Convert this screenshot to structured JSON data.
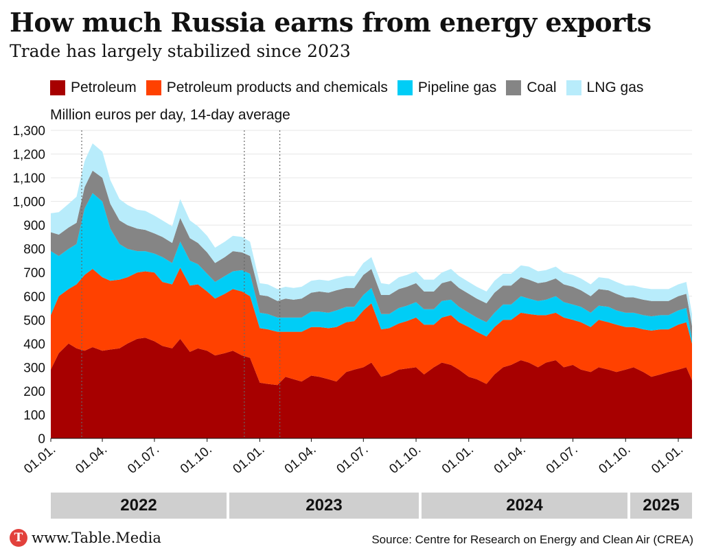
{
  "title": "How much Russia earns from energy exports",
  "subtitle": "Trade has largely stabilized since 2023",
  "legend": [
    {
      "label": "Petroleum",
      "color": "#a70000"
    },
    {
      "label": "Petroleum products and chemicals",
      "color": "#ff4100"
    },
    {
      "label": "Pipeline gas",
      "color": "#00cdf6"
    },
    {
      "label": "Coal",
      "color": "#858585"
    },
    {
      "label": "LNG gas",
      "color": "#b8ecfb"
    }
  ],
  "unit_label": "Million euros per day, 14-day average",
  "years": [
    "2022",
    "2023",
    "2024",
    "2025"
  ],
  "footer": {
    "logo_letter": "T",
    "site": "www.Table.Media"
  },
  "source": "Source: Centre for Research on Energy and Clean Air (CREA)",
  "chart_data": {
    "type": "area",
    "stacked": true,
    "ylim": [
      0,
      1300
    ],
    "y_ticks": [
      "0",
      "100",
      "200",
      "300",
      "400",
      "500",
      "600",
      "700",
      "800",
      "900",
      "1,000",
      "1,100",
      "1,200",
      "1,300"
    ],
    "x_tick_labels": [
      "01.01.",
      "01.04.",
      "01.07.",
      "01.10.",
      "01.01.",
      "01.04.",
      "01.07.",
      "01.10.",
      "01.01.",
      "01.04.",
      "01.07.",
      "01.10.",
      "01.01."
    ],
    "x_tick_dates": [
      "2022-01-01",
      "2022-04-01",
      "2022-07-01",
      "2022-10-01",
      "2023-01-01",
      "2023-04-01",
      "2023-07-01",
      "2023-10-01",
      "2024-01-01",
      "2024-04-01",
      "2024-07-01",
      "2024-10-01",
      "2025-01-01"
    ],
    "x_range": [
      "2022-01-01",
      "2025-01-25"
    ],
    "reference_lines": [
      "2022-02-24",
      "2022-12-05",
      "2023-02-05"
    ],
    "x": [
      "2022-01-01",
      "2022-01-15",
      "2022-02-01",
      "2022-02-15",
      "2022-03-01",
      "2022-03-15",
      "2022-04-01",
      "2022-04-15",
      "2022-05-01",
      "2022-05-15",
      "2022-06-01",
      "2022-06-15",
      "2022-07-01",
      "2022-07-15",
      "2022-08-01",
      "2022-08-15",
      "2022-09-01",
      "2022-09-15",
      "2022-10-01",
      "2022-10-15",
      "2022-11-01",
      "2022-11-15",
      "2022-12-01",
      "2022-12-15",
      "2023-01-01",
      "2023-01-15",
      "2023-02-01",
      "2023-02-15",
      "2023-03-01",
      "2023-03-15",
      "2023-04-01",
      "2023-04-15",
      "2023-05-01",
      "2023-05-15",
      "2023-06-01",
      "2023-06-15",
      "2023-07-01",
      "2023-07-15",
      "2023-08-01",
      "2023-08-15",
      "2023-09-01",
      "2023-09-15",
      "2023-10-01",
      "2023-10-15",
      "2023-11-01",
      "2023-11-15",
      "2023-12-01",
      "2023-12-15",
      "2024-01-01",
      "2024-01-15",
      "2024-02-01",
      "2024-02-15",
      "2024-03-01",
      "2024-03-15",
      "2024-04-01",
      "2024-04-15",
      "2024-05-01",
      "2024-05-15",
      "2024-06-01",
      "2024-06-15",
      "2024-07-01",
      "2024-07-15",
      "2024-08-01",
      "2024-08-15",
      "2024-09-01",
      "2024-09-15",
      "2024-10-01",
      "2024-10-15",
      "2024-11-01",
      "2024-11-15",
      "2024-12-01",
      "2024-12-15",
      "2025-01-01",
      "2025-01-15",
      "2025-01-25"
    ],
    "series": [
      {
        "name": "Petroleum",
        "values": [
          290,
          360,
          400,
          380,
          370,
          385,
          370,
          375,
          380,
          400,
          420,
          425,
          410,
          390,
          380,
          420,
          365,
          380,
          370,
          350,
          360,
          370,
          350,
          340,
          235,
          230,
          225,
          260,
          250,
          240,
          265,
          260,
          250,
          240,
          280,
          290,
          300,
          320,
          260,
          270,
          290,
          295,
          300,
          270,
          300,
          320,
          310,
          290,
          260,
          250,
          230,
          270,
          300,
          310,
          330,
          320,
          300,
          320,
          330,
          300,
          310,
          290,
          280,
          300,
          290,
          280,
          290,
          300,
          280,
          260,
          270,
          280,
          290,
          300,
          245
        ]
      },
      {
        "name": "Petroleum products and chemicals",
        "values": [
          230,
          240,
          230,
          270,
          320,
          330,
          310,
          290,
          290,
          280,
          280,
          280,
          290,
          270,
          270,
          300,
          280,
          270,
          250,
          240,
          250,
          260,
          270,
          260,
          230,
          230,
          225,
          190,
          200,
          210,
          205,
          210,
          215,
          230,
          210,
          205,
          240,
          250,
          200,
          195,
          195,
          200,
          210,
          210,
          180,
          190,
          210,
          200,
          210,
          200,
          200,
          200,
          200,
          190,
          200,
          205,
          220,
          200,
          200,
          210,
          190,
          200,
          190,
          200,
          200,
          200,
          180,
          170,
          180,
          195,
          190,
          180,
          190,
          190,
          155
        ]
      },
      {
        "name": "Pipeline gas",
        "values": [
          270,
          170,
          170,
          170,
          280,
          320,
          320,
          220,
          150,
          120,
          90,
          85,
          80,
          105,
          90,
          110,
          105,
          85,
          75,
          70,
          75,
          75,
          90,
          95,
          65,
          65,
          60,
          60,
          60,
          60,
          65,
          65,
          65,
          70,
          65,
          60,
          65,
          65,
          65,
          60,
          65,
          65,
          65,
          65,
          65,
          70,
          65,
          65,
          60,
          60,
          60,
          60,
          65,
          65,
          70,
          65,
          60,
          65,
          70,
          65,
          65,
          65,
          60,
          60,
          65,
          60,
          60,
          60,
          60,
          60,
          60,
          60,
          60,
          60,
          15
        ]
      },
      {
        "name": "Coal",
        "values": [
          80,
          90,
          90,
          90,
          90,
          95,
          100,
          105,
          100,
          100,
          95,
          90,
          85,
          85,
          85,
          100,
          95,
          90,
          90,
          80,
          80,
          85,
          75,
          75,
          75,
          75,
          70,
          80,
          75,
          80,
          80,
          85,
          85,
          85,
          80,
          80,
          85,
          80,
          80,
          80,
          80,
          80,
          80,
          75,
          75,
          75,
          80,
          80,
          80,
          80,
          80,
          85,
          80,
          80,
          80,
          80,
          75,
          75,
          75,
          75,
          75,
          70,
          70,
          70,
          70,
          70,
          65,
          65,
          65,
          65,
          60,
          60,
          60,
          60,
          60
        ]
      },
      {
        "name": "LNG gas",
        "values": [
          80,
          95,
          100,
          110,
          110,
          115,
          110,
          100,
          90,
          85,
          80,
          80,
          75,
          70,
          70,
          80,
          75,
          70,
          70,
          65,
          65,
          65,
          65,
          60,
          50,
          50,
          50,
          50,
          50,
          50,
          50,
          50,
          50,
          50,
          50,
          50,
          50,
          50,
          50,
          45,
          50,
          50,
          50,
          50,
          50,
          45,
          50,
          50,
          50,
          50,
          50,
          50,
          50,
          50,
          50,
          55,
          50,
          50,
          50,
          50,
          50,
          50,
          50,
          50,
          50,
          50,
          50,
          50,
          50,
          50,
          50,
          50,
          50,
          50,
          50
        ]
      }
    ]
  }
}
